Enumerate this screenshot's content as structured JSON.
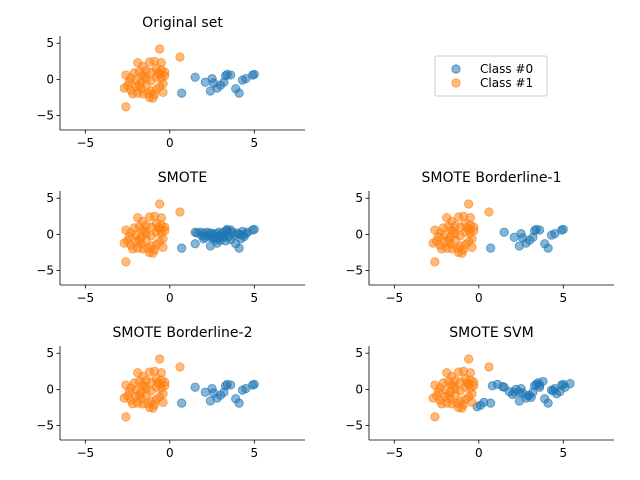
{
  "legend": {
    "entries": [
      {
        "label": "Class #0",
        "color": "#1f77b4"
      },
      {
        "label": "Class #1",
        "color": "#ff7f0e"
      }
    ]
  },
  "class1_points": [
    [
      -2.6,
      -3.8
    ],
    [
      -0.6,
      4.2
    ],
    [
      0.6,
      3.1
    ],
    [
      -1.9,
      2.3
    ],
    [
      -1.6,
      1.8
    ],
    [
      -1.2,
      2.4
    ],
    [
      -0.9,
      2.5
    ],
    [
      -0.5,
      2.3
    ],
    [
      -2.6,
      0.6
    ],
    [
      -2.3,
      0.2
    ],
    [
      -2.1,
      0.9
    ],
    [
      -1.8,
      1.1
    ],
    [
      -1.6,
      0.6
    ],
    [
      -1.4,
      1.2
    ],
    [
      -1.1,
      1.0
    ],
    [
      -0.8,
      1.5
    ],
    [
      -0.5,
      1.3
    ],
    [
      -0.3,
      1.0
    ],
    [
      -2.4,
      -0.3
    ],
    [
      -2.0,
      -0.1
    ],
    [
      -1.7,
      -0.4
    ],
    [
      -1.4,
      0.1
    ],
    [
      -1.1,
      -0.2
    ],
    [
      -0.8,
      0.3
    ],
    [
      -0.5,
      0.2
    ],
    [
      -0.3,
      0.5
    ],
    [
      -2.7,
      -1.2
    ],
    [
      -2.3,
      -1.5
    ],
    [
      -2.0,
      -1.0
    ],
    [
      -1.7,
      -1.3
    ],
    [
      -1.4,
      -0.8
    ],
    [
      -1.1,
      -1.6
    ],
    [
      -0.9,
      -2.1
    ],
    [
      -1.2,
      -2.5
    ],
    [
      -1.6,
      -2.0
    ],
    [
      -1.9,
      -1.9
    ],
    [
      -0.6,
      -1.0
    ],
    [
      -0.4,
      -0.6
    ],
    [
      -2.2,
      -2.0
    ],
    [
      -0.8,
      -1.4
    ],
    [
      -1.3,
      -1.9
    ],
    [
      -1.0,
      -2.6
    ],
    [
      -1.5,
      0.4
    ],
    [
      -0.7,
      0.9
    ],
    [
      -0.4,
      -1.8
    ],
    [
      -1.8,
      -0.8
    ],
    [
      -0.6,
      0.7
    ],
    [
      -2.5,
      -0.9
    ]
  ],
  "class0_points": [
    [
      0.7,
      -1.9
    ],
    [
      1.5,
      0.3
    ],
    [
      2.1,
      -0.4
    ],
    [
      2.4,
      -1.6
    ],
    [
      2.6,
      -0.5
    ],
    [
      2.8,
      -1.2
    ],
    [
      3.0,
      -0.8
    ],
    [
      3.3,
      0.5
    ],
    [
      3.4,
      0.7
    ],
    [
      3.6,
      0.6
    ],
    [
      3.9,
      -1.3
    ],
    [
      4.1,
      -1.9
    ],
    [
      4.3,
      -0.1
    ],
    [
      4.5,
      0.1
    ],
    [
      4.9,
      0.6
    ],
    [
      5.0,
      0.7
    ],
    [
      2.5,
      0.1
    ],
    [
      3.2,
      -0.4
    ]
  ],
  "charts": [
    {
      "title": "Original set",
      "extra_class0": []
    },
    {
      "title": "SMOTE",
      "extra_class0": [
        [
          1.6,
          0.2
        ],
        [
          1.8,
          0.3
        ],
        [
          2.0,
          0.2
        ],
        [
          2.2,
          0.3
        ],
        [
          2.4,
          0.2
        ],
        [
          2.7,
          0.1
        ],
        [
          2.9,
          0.3
        ],
        [
          3.1,
          0.2
        ],
        [
          3.4,
          0.4
        ],
        [
          3.7,
          0.3
        ],
        [
          4.0,
          0.2
        ],
        [
          4.3,
          0.4
        ],
        [
          4.6,
          0.3
        ],
        [
          2.3,
          -0.2
        ],
        [
          2.6,
          -0.3
        ],
        [
          2.9,
          -0.4
        ],
        [
          3.2,
          -0.2
        ],
        [
          3.5,
          -0.3
        ],
        [
          3.8,
          -0.1
        ],
        [
          4.1,
          0.0
        ],
        [
          2.0,
          -0.6
        ],
        [
          2.7,
          -0.8
        ],
        [
          3.3,
          -0.9
        ],
        [
          3.6,
          -0.7
        ],
        [
          4.2,
          -0.6
        ],
        [
          1.5,
          -1.3
        ],
        [
          1.9,
          -0.2
        ],
        [
          2.5,
          -0.5
        ],
        [
          3.0,
          -0.1
        ],
        [
          4.4,
          -0.3
        ]
      ]
    },
    {
      "title": "SMOTE Borderline-1",
      "extra_class0": []
    },
    {
      "title": "SMOTE Borderline-2",
      "extra_class0": []
    },
    {
      "title": "SMOTE SVM",
      "extra_class0": [
        [
          -0.1,
          -2.4
        ],
        [
          0.1,
          -2.2
        ],
        [
          0.3,
          -1.8
        ],
        [
          0.8,
          0.5
        ],
        [
          1.1,
          0.7
        ],
        [
          1.4,
          0.4
        ],
        [
          1.8,
          -0.3
        ],
        [
          2.0,
          -0.7
        ],
        [
          2.4,
          -0.4
        ],
        [
          2.9,
          -0.9
        ],
        [
          3.1,
          -1.1
        ],
        [
          3.5,
          0.9
        ],
        [
          3.8,
          1.1
        ],
        [
          4.4,
          -0.2
        ],
        [
          4.6,
          -0.6
        ],
        [
          4.8,
          -0.3
        ],
        [
          5.1,
          0.3
        ],
        [
          5.4,
          0.8
        ],
        [
          3.6,
          0.3
        ],
        [
          2.2,
          0.0
        ]
      ]
    }
  ],
  "chart_data": [
    {
      "type": "scatter",
      "title": "Original set",
      "xlim": [
        -6.5,
        8
      ],
      "ylim": [
        -7,
        6
      ],
      "xticks": [
        -5,
        0,
        5
      ],
      "yticks": [
        5,
        0,
        -5
      ],
      "series": [
        {
          "name": "Class #0",
          "color": "#1f77b4"
        },
        {
          "name": "Class #1",
          "color": "#ff7f0e"
        }
      ],
      "legend": "right"
    },
    {
      "type": "scatter",
      "title": "SMOTE",
      "xlim": [
        -6.5,
        8
      ],
      "ylim": [
        -7,
        6
      ],
      "xticks": [
        -5,
        0,
        5
      ],
      "yticks": [
        5,
        0,
        -5
      ],
      "series": [
        {
          "name": "Class #0",
          "color": "#1f77b4"
        },
        {
          "name": "Class #1",
          "color": "#ff7f0e"
        }
      ]
    },
    {
      "type": "scatter",
      "title": "SMOTE Borderline-1",
      "xlim": [
        -6.5,
        8
      ],
      "ylim": [
        -7,
        6
      ],
      "xticks": [
        -5,
        0,
        5
      ],
      "yticks": [
        5,
        0,
        -5
      ],
      "series": [
        {
          "name": "Class #0",
          "color": "#1f77b4"
        },
        {
          "name": "Class #1",
          "color": "#ff7f0e"
        }
      ]
    },
    {
      "type": "scatter",
      "title": "SMOTE Borderline-2",
      "xlim": [
        -6.5,
        8
      ],
      "ylim": [
        -7,
        6
      ],
      "xticks": [
        -5,
        0,
        5
      ],
      "yticks": [
        5,
        0,
        -5
      ],
      "series": [
        {
          "name": "Class #0",
          "color": "#1f77b4"
        },
        {
          "name": "Class #1",
          "color": "#ff7f0e"
        }
      ]
    },
    {
      "type": "scatter",
      "title": "SMOTE SVM",
      "xlim": [
        -6.5,
        8
      ],
      "ylim": [
        -7,
        6
      ],
      "xticks": [
        -5,
        0,
        5
      ],
      "yticks": [
        5,
        0,
        -5
      ],
      "series": [
        {
          "name": "Class #0",
          "color": "#1f77b4"
        },
        {
          "name": "Class #1",
          "color": "#ff7f0e"
        }
      ]
    }
  ]
}
